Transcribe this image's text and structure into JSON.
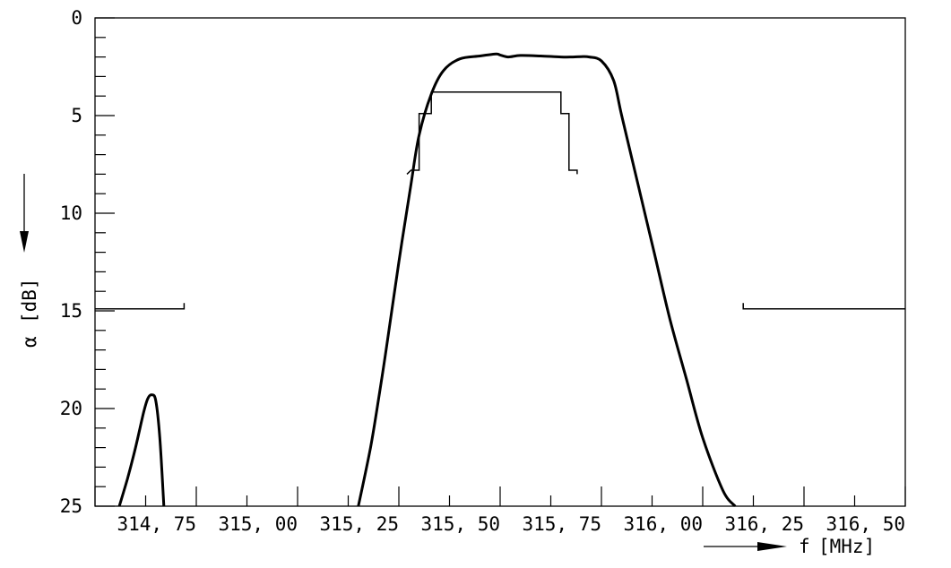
{
  "chart_data": {
    "type": "line",
    "xlabel_symbol": "f",
    "xlabel_unit": "[MHz]",
    "ylabel_symbol": "α",
    "ylabel_unit": "[dB]",
    "xlim": [
      314.5,
      316.5
    ],
    "ylim": [
      0,
      25
    ],
    "y_inverted": true,
    "x_ticks": [
      "314, 75",
      "315, 00",
      "315, 25",
      "315, 50",
      "315, 75",
      "316, 00",
      "316, 25",
      "316, 50"
    ],
    "x_tick_values": [
      314.75,
      315.0,
      315.25,
      315.5,
      315.75,
      316.0,
      316.25,
      316.5
    ],
    "y_ticks": [
      "0",
      "5",
      "10",
      "15",
      "20",
      "25"
    ],
    "y_tick_values": [
      0,
      5,
      10,
      15,
      20,
      25
    ],
    "grid": false,
    "series": [
      {
        "role": "filter-response",
        "x": [
          315.15,
          315.18,
          315.2,
          315.22,
          315.25,
          315.28,
          315.3,
          315.33,
          315.36,
          315.4,
          315.45,
          315.49,
          315.5,
          315.52,
          315.55,
          315.6,
          315.65,
          315.68,
          315.7,
          315.72,
          315.75,
          315.78,
          315.8,
          315.84,
          315.88,
          315.92,
          315.96,
          316.0,
          316.05,
          316.08
        ],
        "y": [
          25.0,
          22.0,
          19.5,
          16.8,
          12.5,
          8.5,
          6.0,
          3.9,
          2.7,
          2.1,
          1.95,
          1.85,
          1.9,
          2.0,
          1.92,
          1.95,
          2.0,
          2.0,
          1.98,
          2.0,
          2.2,
          3.2,
          5.0,
          8.5,
          12.0,
          15.5,
          18.5,
          21.5,
          24.2,
          25.0
        ]
      },
      {
        "role": "spurious-peak",
        "x": [
          314.56,
          314.58,
          314.6,
          314.62,
          314.63,
          314.64,
          314.65,
          314.66,
          314.67
        ],
        "y": [
          25.0,
          23.6,
          22.0,
          20.2,
          19.5,
          19.3,
          19.6,
          21.5,
          25.0
        ]
      }
    ],
    "tolerance_mask": {
      "upper_step": {
        "x": [
          315.27,
          315.28,
          315.28,
          315.3,
          315.3,
          315.33,
          315.33,
          315.65,
          315.65,
          315.67,
          315.67,
          315.69,
          315.69
        ],
        "y": [
          8.0,
          7.8,
          7.8,
          7.8,
          4.9,
          4.9,
          3.8,
          3.8,
          4.9,
          4.9,
          7.8,
          7.8,
          8.0
        ]
      },
      "stopband_left": {
        "x": [
          314.5,
          314.72,
          314.72
        ],
        "y": [
          14.9,
          14.9,
          14.6
        ]
      },
      "stopband_right": {
        "x": [
          316.1,
          316.1,
          316.5
        ],
        "y": [
          14.6,
          14.9,
          14.9
        ]
      }
    }
  }
}
